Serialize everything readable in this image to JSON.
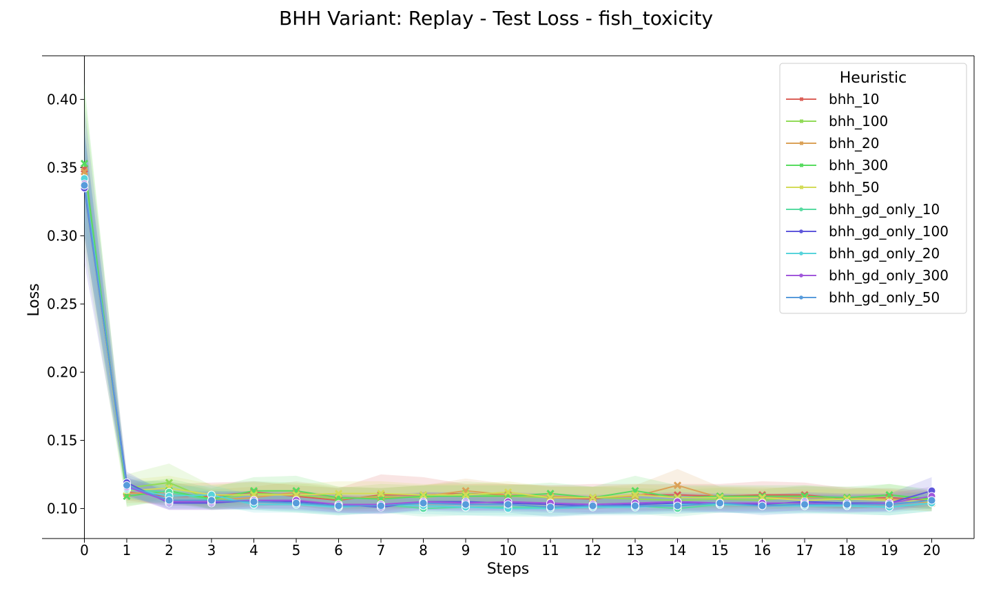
{
  "chart_data": {
    "type": "line",
    "title": "BHH Variant: Replay - Test Loss - fish_toxicity",
    "xlabel": "Steps",
    "ylabel": "Loss",
    "x": [
      0,
      1,
      2,
      3,
      4,
      5,
      6,
      7,
      8,
      9,
      10,
      11,
      12,
      13,
      14,
      15,
      16,
      17,
      18,
      19,
      20
    ],
    "xticks": [
      "0",
      "1",
      "2",
      "3",
      "4",
      "5",
      "6",
      "7",
      "8",
      "9",
      "10",
      "11",
      "12",
      "13",
      "14",
      "15",
      "16",
      "17",
      "18",
      "19",
      "20"
    ],
    "xlim": [
      -1,
      21
    ],
    "ylim": [
      0.078,
      0.432
    ],
    "yticks": [
      0.1,
      0.15,
      0.2,
      0.25,
      0.3,
      0.35,
      0.4
    ],
    "ytick_labels": [
      "0.10",
      "0.15",
      "0.20",
      "0.25",
      "0.30",
      "0.35",
      "0.40"
    ],
    "grid": false,
    "legend": {
      "title": "Heuristic",
      "placement": "top-right"
    },
    "series": [
      {
        "name": "bhh_10",
        "color": "#db5f57",
        "marker": "x",
        "values": [
          0.349,
          0.112,
          0.109,
          0.109,
          0.112,
          0.109,
          0.106,
          0.11,
          0.11,
          0.111,
          0.11,
          0.108,
          0.107,
          0.11,
          0.11,
          0.109,
          0.11,
          0.11,
          0.107,
          0.108,
          0.106
        ],
        "band": [
          [
            0.34,
            0.36
          ],
          [
            0.106,
            0.118
          ],
          [
            0.102,
            0.118
          ],
          [
            0.102,
            0.119
          ],
          [
            0.105,
            0.12
          ],
          [
            0.102,
            0.117
          ],
          [
            0.098,
            0.115
          ],
          [
            0.098,
            0.125
          ],
          [
            0.101,
            0.123
          ],
          [
            0.103,
            0.118
          ],
          [
            0.103,
            0.118
          ],
          [
            0.1,
            0.117
          ],
          [
            0.099,
            0.118
          ],
          [
            0.103,
            0.118
          ],
          [
            0.102,
            0.118
          ],
          [
            0.102,
            0.118
          ],
          [
            0.101,
            0.12
          ],
          [
            0.102,
            0.119
          ],
          [
            0.1,
            0.115
          ],
          [
            0.101,
            0.115
          ],
          [
            0.1,
            0.113
          ]
        ]
      },
      {
        "name": "bhh_100",
        "color": "#91db57",
        "marker": "x",
        "values": [
          0.341,
          0.115,
          0.119,
          0.106,
          0.111,
          0.11,
          0.107,
          0.109,
          0.108,
          0.111,
          0.109,
          0.108,
          0.108,
          0.107,
          0.106,
          0.107,
          0.106,
          0.109,
          0.106,
          0.11,
          0.106
        ],
        "band": [
          [
            0.29,
            0.405
          ],
          [
            0.101,
            0.125
          ],
          [
            0.108,
            0.133
          ],
          [
            0.099,
            0.117
          ],
          [
            0.102,
            0.12
          ],
          [
            0.102,
            0.119
          ],
          [
            0.099,
            0.115
          ],
          [
            0.1,
            0.118
          ],
          [
            0.1,
            0.117
          ],
          [
            0.101,
            0.12
          ],
          [
            0.101,
            0.118
          ],
          [
            0.099,
            0.116
          ],
          [
            0.1,
            0.116
          ],
          [
            0.099,
            0.115
          ],
          [
            0.098,
            0.114
          ],
          [
            0.099,
            0.115
          ],
          [
            0.099,
            0.114
          ],
          [
            0.101,
            0.117
          ],
          [
            0.099,
            0.114
          ],
          [
            0.102,
            0.118
          ],
          [
            0.099,
            0.113
          ]
        ]
      },
      {
        "name": "bhh_20",
        "color": "#dba157",
        "marker": "x",
        "values": [
          0.347,
          0.111,
          0.112,
          0.106,
          0.108,
          0.112,
          0.108,
          0.108,
          0.109,
          0.113,
          0.11,
          0.109,
          0.108,
          0.109,
          0.117,
          0.108,
          0.108,
          0.108,
          0.108,
          0.107,
          0.104
        ],
        "band": [
          [
            0.33,
            0.365
          ],
          [
            0.104,
            0.12
          ],
          [
            0.104,
            0.12
          ],
          [
            0.1,
            0.114
          ],
          [
            0.101,
            0.116
          ],
          [
            0.104,
            0.12
          ],
          [
            0.101,
            0.116
          ],
          [
            0.101,
            0.115
          ],
          [
            0.102,
            0.117
          ],
          [
            0.105,
            0.122
          ],
          [
            0.102,
            0.118
          ],
          [
            0.101,
            0.117
          ],
          [
            0.1,
            0.116
          ],
          [
            0.101,
            0.117
          ],
          [
            0.107,
            0.129
          ],
          [
            0.101,
            0.116
          ],
          [
            0.101,
            0.115
          ],
          [
            0.101,
            0.116
          ],
          [
            0.1,
            0.116
          ],
          [
            0.1,
            0.114
          ],
          [
            0.098,
            0.11
          ]
        ]
      },
      {
        "name": "bhh_300",
        "color": "#57db5f",
        "marker": "x",
        "values": [
          0.353,
          0.109,
          0.113,
          0.107,
          0.113,
          0.113,
          0.108,
          0.107,
          0.109,
          0.109,
          0.109,
          0.111,
          0.108,
          0.113,
          0.108,
          0.109,
          0.109,
          0.109,
          0.108,
          0.11,
          0.107
        ],
        "band": [
          [
            0.3,
            0.412
          ],
          [
            0.102,
            0.118
          ],
          [
            0.105,
            0.122
          ],
          [
            0.1,
            0.115
          ],
          [
            0.104,
            0.123
          ],
          [
            0.104,
            0.124
          ],
          [
            0.1,
            0.116
          ],
          [
            0.1,
            0.115
          ],
          [
            0.101,
            0.117
          ],
          [
            0.101,
            0.117
          ],
          [
            0.101,
            0.117
          ],
          [
            0.103,
            0.119
          ],
          [
            0.1,
            0.116
          ],
          [
            0.103,
            0.124
          ],
          [
            0.1,
            0.117
          ],
          [
            0.101,
            0.117
          ],
          [
            0.101,
            0.117
          ],
          [
            0.101,
            0.117
          ],
          [
            0.1,
            0.116
          ],
          [
            0.102,
            0.118
          ],
          [
            0.1,
            0.114
          ]
        ]
      },
      {
        "name": "bhh_50",
        "color": "#d3db57",
        "marker": "x",
        "values": [
          0.338,
          0.113,
          0.115,
          0.11,
          0.11,
          0.11,
          0.111,
          0.111,
          0.11,
          0.11,
          0.112,
          0.108,
          0.108,
          0.11,
          0.108,
          0.108,
          0.108,
          0.106,
          0.107,
          0.106,
          0.105
        ],
        "band": [
          [
            0.325,
            0.352
          ],
          [
            0.106,
            0.121
          ],
          [
            0.107,
            0.124
          ],
          [
            0.102,
            0.118
          ],
          [
            0.102,
            0.119
          ],
          [
            0.102,
            0.118
          ],
          [
            0.103,
            0.12
          ],
          [
            0.103,
            0.12
          ],
          [
            0.102,
            0.118
          ],
          [
            0.102,
            0.118
          ],
          [
            0.104,
            0.12
          ],
          [
            0.1,
            0.116
          ],
          [
            0.1,
            0.116
          ],
          [
            0.102,
            0.118
          ],
          [
            0.1,
            0.116
          ],
          [
            0.1,
            0.116
          ],
          [
            0.1,
            0.116
          ],
          [
            0.099,
            0.114
          ],
          [
            0.1,
            0.114
          ],
          [
            0.099,
            0.114
          ],
          [
            0.098,
            0.112
          ]
        ]
      },
      {
        "name": "bhh_gd_only_10",
        "color": "#57dba1",
        "marker": "o",
        "values": [
          0.341,
          0.114,
          0.112,
          0.106,
          0.106,
          0.104,
          0.101,
          0.103,
          0.1,
          0.101,
          0.101,
          0.101,
          0.102,
          0.102,
          0.1,
          0.103,
          0.103,
          0.103,
          0.102,
          0.101,
          0.104
        ],
        "band": [
          [
            0.3,
            0.38
          ],
          [
            0.107,
            0.121
          ],
          [
            0.104,
            0.12
          ],
          [
            0.099,
            0.113
          ],
          [
            0.099,
            0.113
          ],
          [
            0.097,
            0.111
          ],
          [
            0.095,
            0.107
          ],
          [
            0.097,
            0.11
          ],
          [
            0.094,
            0.107
          ],
          [
            0.095,
            0.108
          ],
          [
            0.095,
            0.108
          ],
          [
            0.095,
            0.108
          ],
          [
            0.096,
            0.109
          ],
          [
            0.096,
            0.109
          ],
          [
            0.094,
            0.107
          ],
          [
            0.097,
            0.11
          ],
          [
            0.097,
            0.11
          ],
          [
            0.097,
            0.11
          ],
          [
            0.096,
            0.109
          ],
          [
            0.095,
            0.108
          ],
          [
            0.098,
            0.111
          ]
        ]
      },
      {
        "name": "bhh_gd_only_100",
        "color": "#5f57db",
        "marker": "o",
        "values": [
          0.335,
          0.119,
          0.104,
          0.104,
          0.106,
          0.105,
          0.103,
          0.101,
          0.105,
          0.105,
          0.104,
          0.103,
          0.102,
          0.103,
          0.104,
          0.103,
          0.103,
          0.105,
          0.104,
          0.104,
          0.113
        ],
        "band": [
          [
            0.28,
            0.395
          ],
          [
            0.11,
            0.127
          ],
          [
            0.099,
            0.11
          ],
          [
            0.099,
            0.111
          ],
          [
            0.1,
            0.112
          ],
          [
            0.099,
            0.112
          ],
          [
            0.097,
            0.11
          ],
          [
            0.096,
            0.107
          ],
          [
            0.099,
            0.112
          ],
          [
            0.099,
            0.112
          ],
          [
            0.098,
            0.111
          ],
          [
            0.097,
            0.11
          ],
          [
            0.096,
            0.109
          ],
          [
            0.097,
            0.11
          ],
          [
            0.098,
            0.111
          ],
          [
            0.097,
            0.11
          ],
          [
            0.097,
            0.11
          ],
          [
            0.099,
            0.112
          ],
          [
            0.098,
            0.111
          ],
          [
            0.098,
            0.111
          ],
          [
            0.104,
            0.123
          ]
        ]
      },
      {
        "name": "bhh_gd_only_20",
        "color": "#57d3db",
        "marker": "o",
        "values": [
          0.342,
          0.115,
          0.109,
          0.11,
          0.103,
          0.103,
          0.101,
          0.103,
          0.102,
          0.101,
          0.1,
          0.1,
          0.101,
          0.101,
          0.103,
          0.103,
          0.102,
          0.102,
          0.102,
          0.101,
          0.104
        ],
        "band": [
          [
            0.31,
            0.375
          ],
          [
            0.108,
            0.122
          ],
          [
            0.102,
            0.116
          ],
          [
            0.103,
            0.117
          ],
          [
            0.097,
            0.11
          ],
          [
            0.097,
            0.11
          ],
          [
            0.095,
            0.107
          ],
          [
            0.097,
            0.11
          ],
          [
            0.096,
            0.109
          ],
          [
            0.095,
            0.108
          ],
          [
            0.094,
            0.107
          ],
          [
            0.094,
            0.107
          ],
          [
            0.095,
            0.108
          ],
          [
            0.095,
            0.108
          ],
          [
            0.097,
            0.11
          ],
          [
            0.097,
            0.11
          ],
          [
            0.096,
            0.109
          ],
          [
            0.096,
            0.109
          ],
          [
            0.096,
            0.109
          ],
          [
            0.095,
            0.108
          ],
          [
            0.098,
            0.111
          ]
        ]
      },
      {
        "name": "bhh_gd_only_300",
        "color": "#a157db",
        "marker": "o",
        "values": [
          0.338,
          0.116,
          0.105,
          0.105,
          0.106,
          0.106,
          0.103,
          0.103,
          0.105,
          0.104,
          0.105,
          0.104,
          0.103,
          0.104,
          0.105,
          0.104,
          0.104,
          0.104,
          0.103,
          0.104,
          0.109
        ],
        "band": [
          [
            0.3,
            0.378
          ],
          [
            0.109,
            0.123
          ],
          [
            0.099,
            0.112
          ],
          [
            0.099,
            0.112
          ],
          [
            0.1,
            0.113
          ],
          [
            0.1,
            0.113
          ],
          [
            0.097,
            0.11
          ],
          [
            0.097,
            0.11
          ],
          [
            0.099,
            0.112
          ],
          [
            0.098,
            0.111
          ],
          [
            0.099,
            0.112
          ],
          [
            0.098,
            0.111
          ],
          [
            0.097,
            0.11
          ],
          [
            0.098,
            0.111
          ],
          [
            0.099,
            0.112
          ],
          [
            0.098,
            0.111
          ],
          [
            0.098,
            0.111
          ],
          [
            0.098,
            0.111
          ],
          [
            0.097,
            0.11
          ],
          [
            0.098,
            0.111
          ],
          [
            0.102,
            0.116
          ]
        ]
      },
      {
        "name": "bhh_gd_only_50",
        "color": "#579bdb",
        "marker": "o",
        "values": [
          0.337,
          0.117,
          0.106,
          0.106,
          0.105,
          0.104,
          0.102,
          0.102,
          0.104,
          0.103,
          0.103,
          0.101,
          0.102,
          0.102,
          0.102,
          0.104,
          0.102,
          0.103,
          0.103,
          0.103,
          0.106
        ],
        "band": [
          [
            0.3,
            0.375
          ],
          [
            0.11,
            0.125
          ],
          [
            0.1,
            0.113
          ],
          [
            0.1,
            0.113
          ],
          [
            0.099,
            0.112
          ],
          [
            0.098,
            0.111
          ],
          [
            0.096,
            0.109
          ],
          [
            0.096,
            0.109
          ],
          [
            0.098,
            0.111
          ],
          [
            0.097,
            0.11
          ],
          [
            0.097,
            0.11
          ],
          [
            0.094,
            0.108
          ],
          [
            0.096,
            0.109
          ],
          [
            0.096,
            0.109
          ],
          [
            0.096,
            0.109
          ],
          [
            0.098,
            0.111
          ],
          [
            0.095,
            0.109
          ],
          [
            0.097,
            0.11
          ],
          [
            0.097,
            0.11
          ],
          [
            0.097,
            0.11
          ],
          [
            0.1,
            0.113
          ]
        ]
      }
    ]
  }
}
